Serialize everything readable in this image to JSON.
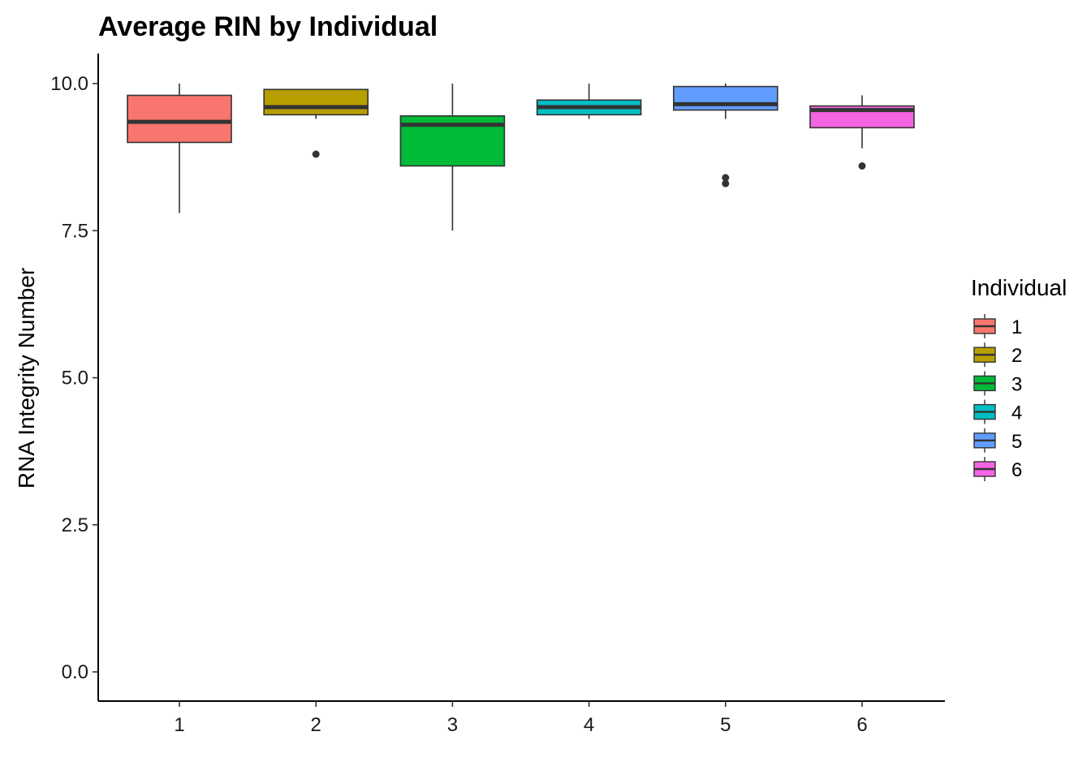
{
  "chart_data": {
    "type": "box",
    "title": "Average RIN by Individual",
    "xlabel": "",
    "ylabel": "RNA Integrity Number",
    "ylim": [
      -0.5,
      10.5
    ],
    "yticks": [
      "0.0",
      "2.5",
      "5.0",
      "7.5",
      "10.0"
    ],
    "ytick_values": [
      0,
      2.5,
      5,
      7.5,
      10
    ],
    "categories": [
      "1",
      "2",
      "3",
      "4",
      "5",
      "6"
    ],
    "grid": false,
    "legend": {
      "title": "Individual",
      "placement": "right",
      "entries": [
        "1",
        "2",
        "3",
        "4",
        "5",
        "6"
      ]
    },
    "colors": [
      "#F8766D",
      "#B79F00",
      "#00BA38",
      "#00BFC4",
      "#619CFF",
      "#F564E3"
    ],
    "outline_color": "#333333",
    "boxes": [
      {
        "category": "1",
        "whisker_low": 7.8,
        "q1": 9.0,
        "median": 9.35,
        "q3": 9.8,
        "whisker_high": 10.0,
        "outliers": []
      },
      {
        "category": "2",
        "whisker_low": 9.4,
        "q1": 9.47,
        "median": 9.6,
        "q3": 9.9,
        "whisker_high": 9.9,
        "outliers": [
          8.8
        ]
      },
      {
        "category": "3",
        "whisker_low": 7.5,
        "q1": 8.6,
        "median": 9.3,
        "q3": 9.45,
        "whisker_high": 10.0,
        "outliers": []
      },
      {
        "category": "4",
        "whisker_low": 9.4,
        "q1": 9.47,
        "median": 9.6,
        "q3": 9.72,
        "whisker_high": 10.0,
        "outliers": []
      },
      {
        "category": "5",
        "whisker_low": 9.4,
        "q1": 9.55,
        "median": 9.65,
        "q3": 9.95,
        "whisker_high": 10.0,
        "outliers": [
          8.4,
          8.3
        ]
      },
      {
        "category": "6",
        "whisker_low": 8.9,
        "q1": 9.25,
        "median": 9.55,
        "q3": 9.62,
        "whisker_high": 9.8,
        "outliers": [
          8.6
        ]
      }
    ]
  }
}
